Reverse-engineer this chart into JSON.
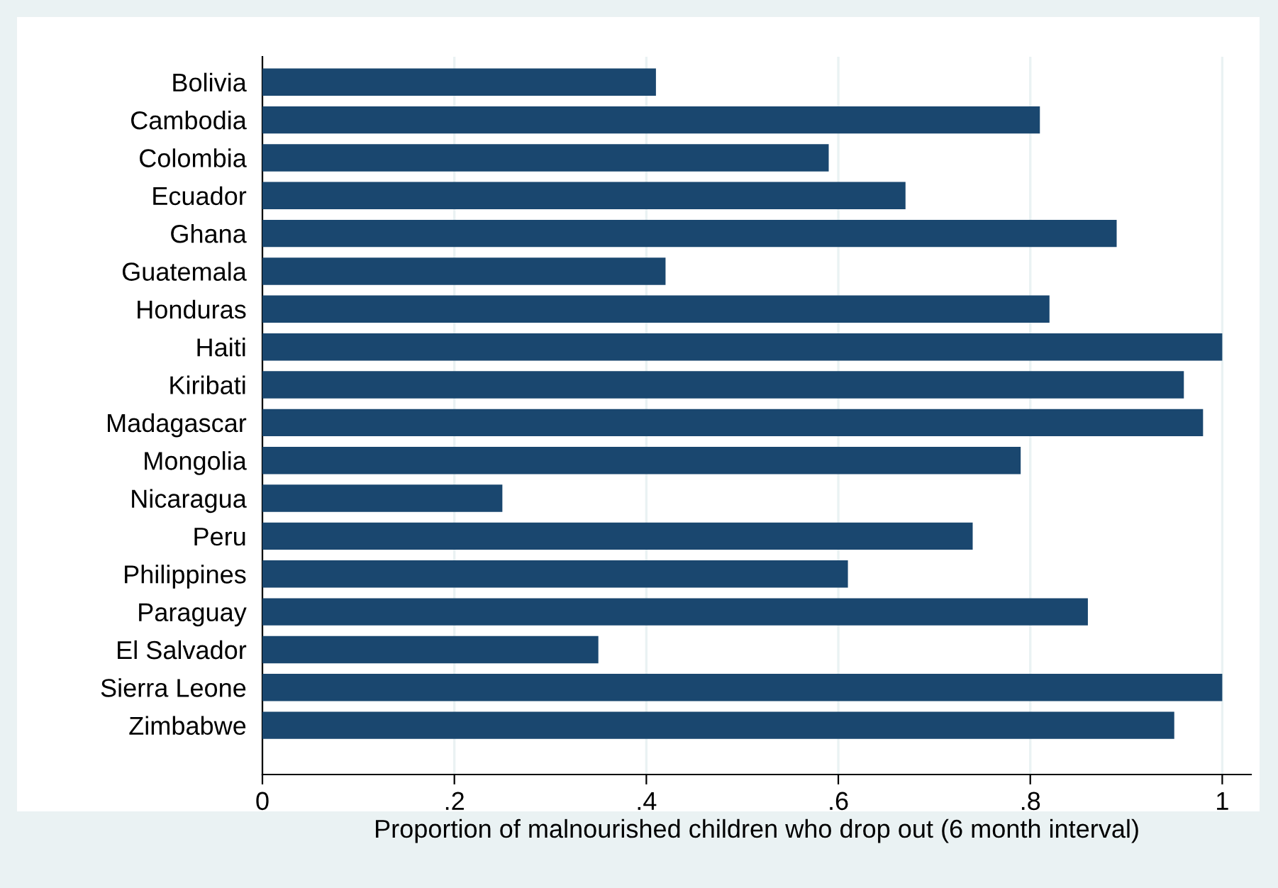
{
  "chart_data": {
    "type": "bar",
    "orientation": "horizontal",
    "xlabel": "Proportion of malnourished children who drop out (6 month interval)",
    "categories": [
      "Bolivia",
      "Cambodia",
      "Colombia",
      "Ecuador",
      "Ghana",
      "Guatemala",
      "Honduras",
      "Haiti",
      "Kiribati",
      "Madagascar",
      "Mongolia",
      "Nicaragua",
      "Peru",
      "Philippines",
      "Paraguay",
      "El Salvador",
      "Sierra Leone",
      "Zimbabwe"
    ],
    "values": [
      0.41,
      0.81,
      0.59,
      0.67,
      0.89,
      0.42,
      0.82,
      1.0,
      0.96,
      0.98,
      0.79,
      0.25,
      0.74,
      0.61,
      0.86,
      0.35,
      1.0,
      0.95
    ],
    "color": "#1a476f",
    "xlim": [
      0,
      1.03
    ],
    "xticks": [
      0,
      {
        "value": 0.2,
        "label": ".2"
      },
      {
        "value": 0.4,
        "label": ".4"
      },
      {
        "value": 0.6,
        "label": ".6"
      },
      {
        "value": 0.8,
        "label": ".8"
      },
      1
    ],
    "grid": "x",
    "legend": false
  }
}
